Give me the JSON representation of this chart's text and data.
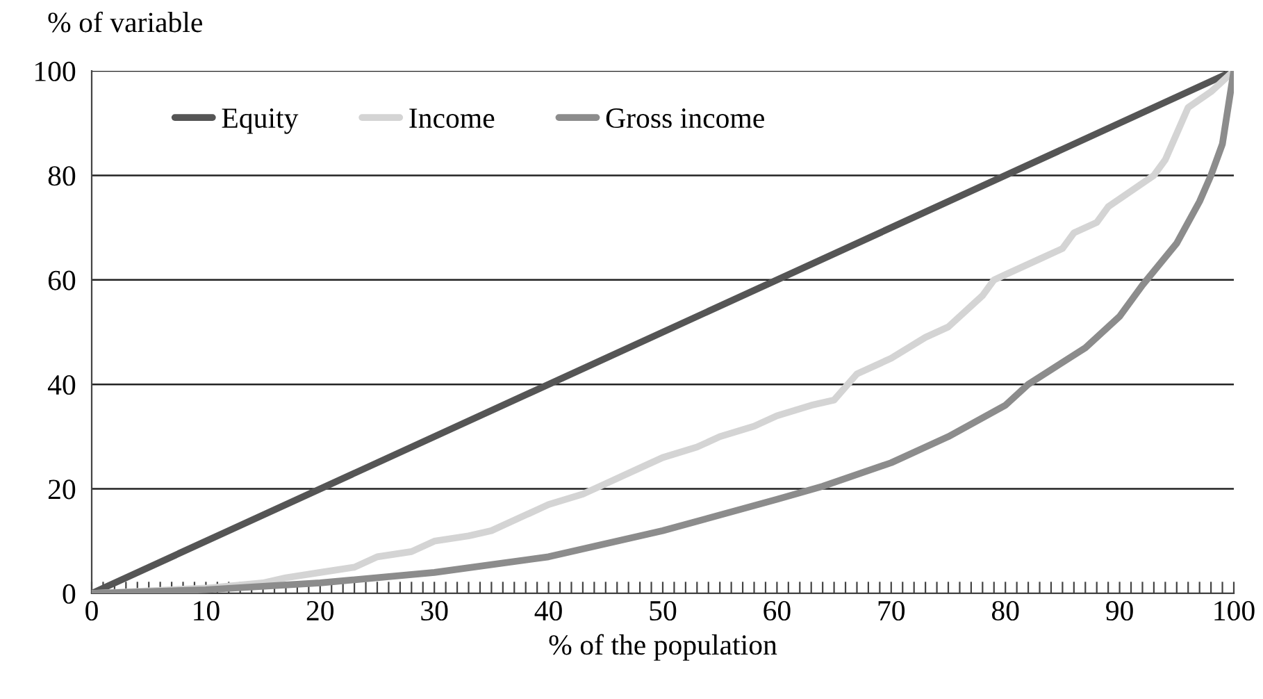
{
  "chart_data": {
    "type": "line",
    "ylabel": "% of variable",
    "xlabel": "% of the population",
    "xlim": [
      0,
      100
    ],
    "ylim": [
      0,
      100
    ],
    "yticks": [
      0,
      20,
      40,
      60,
      80,
      100
    ],
    "xticks": [
      0,
      {
        "value": 1,
        "label": null
      },
      {
        "value": 2,
        "label": null
      },
      {
        "value": 3,
        "label": null
      },
      {
        "value": 4,
        "label": null
      },
      {
        "value": 5,
        "label": null
      },
      {
        "value": 6,
        "label": null
      },
      {
        "value": 7,
        "label": null
      },
      {
        "value": 8,
        "label": null
      },
      {
        "value": 9,
        "label": null
      },
      10,
      {
        "value": 11,
        "label": null
      },
      {
        "value": 12,
        "label": null
      },
      {
        "value": 13,
        "label": null
      },
      {
        "value": 14,
        "label": null
      },
      {
        "value": 15,
        "label": null
      },
      {
        "value": 16,
        "label": null
      },
      {
        "value": 17,
        "label": null
      },
      {
        "value": 18,
        "label": null
      },
      {
        "value": 19,
        "label": null
      },
      20,
      {
        "value": 21,
        "label": null
      },
      {
        "value": 22,
        "label": null
      },
      {
        "value": 23,
        "label": null
      },
      {
        "value": 24,
        "label": null
      },
      {
        "value": 25,
        "label": null
      },
      {
        "value": 26,
        "label": null
      },
      {
        "value": 27,
        "label": null
      },
      {
        "value": 28,
        "label": null
      },
      {
        "value": 29,
        "label": null
      },
      30,
      {
        "value": 31,
        "label": null
      },
      {
        "value": 32,
        "label": null
      },
      {
        "value": 33,
        "label": null
      },
      {
        "value": 34,
        "label": null
      },
      {
        "value": 35,
        "label": null
      },
      {
        "value": 36,
        "label": null
      },
      {
        "value": 37,
        "label": null
      },
      {
        "value": 38,
        "label": null
      },
      {
        "value": 39,
        "label": null
      },
      40,
      {
        "value": 41,
        "label": null
      },
      {
        "value": 42,
        "label": null
      },
      {
        "value": 43,
        "label": null
      },
      {
        "value": 44,
        "label": null
      },
      {
        "value": 45,
        "label": null
      },
      {
        "value": 46,
        "label": null
      },
      {
        "value": 47,
        "label": null
      },
      {
        "value": 48,
        "label": null
      },
      {
        "value": 49,
        "label": null
      },
      50,
      {
        "value": 51,
        "label": null
      },
      {
        "value": 52,
        "label": null
      },
      {
        "value": 53,
        "label": null
      },
      {
        "value": 54,
        "label": null
      },
      {
        "value": 55,
        "label": null
      },
      {
        "value": 56,
        "label": null
      },
      {
        "value": 57,
        "label": null
      },
      {
        "value": 58,
        "label": null
      },
      {
        "value": 59,
        "label": null
      },
      60,
      {
        "value": 61,
        "label": null
      },
      {
        "value": 62,
        "label": null
      },
      {
        "value": 63,
        "label": null
      },
      {
        "value": 64,
        "label": null
      },
      {
        "value": 65,
        "label": null
      },
      {
        "value": 66,
        "label": null
      },
      {
        "value": 67,
        "label": null
      },
      {
        "value": 68,
        "label": null
      },
      {
        "value": 69,
        "label": null
      },
      70,
      {
        "value": 71,
        "label": null
      },
      {
        "value": 72,
        "label": null
      },
      {
        "value": 73,
        "label": null
      },
      {
        "value": 74,
        "label": null
      },
      {
        "value": 75,
        "label": null
      },
      {
        "value": 76,
        "label": null
      },
      {
        "value": 77,
        "label": null
      },
      {
        "value": 78,
        "label": null
      },
      {
        "value": 79,
        "label": null
      },
      80,
      {
        "value": 81,
        "label": null
      },
      {
        "value": 82,
        "label": null
      },
      {
        "value": 83,
        "label": null
      },
      {
        "value": 84,
        "label": null
      },
      {
        "value": 85,
        "label": null
      },
      {
        "value": 86,
        "label": null
      },
      {
        "value": 87,
        "label": null
      },
      {
        "value": 88,
        "label": null
      },
      {
        "value": 89,
        "label": null
      },
      90,
      {
        "value": 91,
        "label": null
      },
      {
        "value": 92,
        "label": null
      },
      {
        "value": 93,
        "label": null
      },
      {
        "value": 94,
        "label": null
      },
      {
        "value": 95,
        "label": null
      },
      {
        "value": 96,
        "label": null
      },
      {
        "value": 97,
        "label": null
      },
      {
        "value": 98,
        "label": null
      },
      {
        "value": 99,
        "label": null
      },
      100
    ],
    "grid": "y",
    "legend": "top left",
    "marker": "none",
    "line_style": "solid",
    "series": [
      {
        "name": "Equity",
        "color": "#555555",
        "x": [
          0,
          100
        ],
        "values": [
          0,
          100
        ]
      },
      {
        "name": "Income",
        "color": "#d4d4d4",
        "x": [
          0,
          5,
          10,
          15,
          17,
          20,
          23,
          25,
          28,
          30,
          33,
          35,
          38,
          40,
          43,
          45,
          48,
          50,
          53,
          55,
          58,
          60,
          63,
          65,
          67,
          70,
          73,
          75,
          77,
          78,
          79,
          80,
          83,
          85,
          86,
          88,
          89,
          91,
          93,
          94,
          95,
          96,
          98,
          100
        ],
        "values": [
          0,
          0.5,
          1,
          2,
          3,
          4,
          5,
          7,
          8,
          10,
          11,
          12,
          15,
          17,
          19,
          21,
          24,
          26,
          28,
          30,
          32,
          34,
          36,
          37,
          42,
          45,
          49,
          51,
          55,
          57,
          60,
          61,
          64,
          66,
          69,
          71,
          74,
          77,
          80,
          83,
          88,
          93,
          96,
          100
        ]
      },
      {
        "name": "Gross income",
        "color": "#8c8c8c",
        "x": [
          0,
          10,
          20,
          30,
          40,
          50,
          60,
          64,
          70,
          75,
          80,
          82,
          87,
          90,
          92,
          95,
          97,
          98,
          99,
          100
        ],
        "values": [
          0,
          0.7,
          2,
          4,
          7,
          12,
          18,
          20.5,
          25,
          30,
          36,
          40,
          47,
          53,
          59,
          67,
          75,
          80,
          86,
          100
        ]
      }
    ]
  }
}
